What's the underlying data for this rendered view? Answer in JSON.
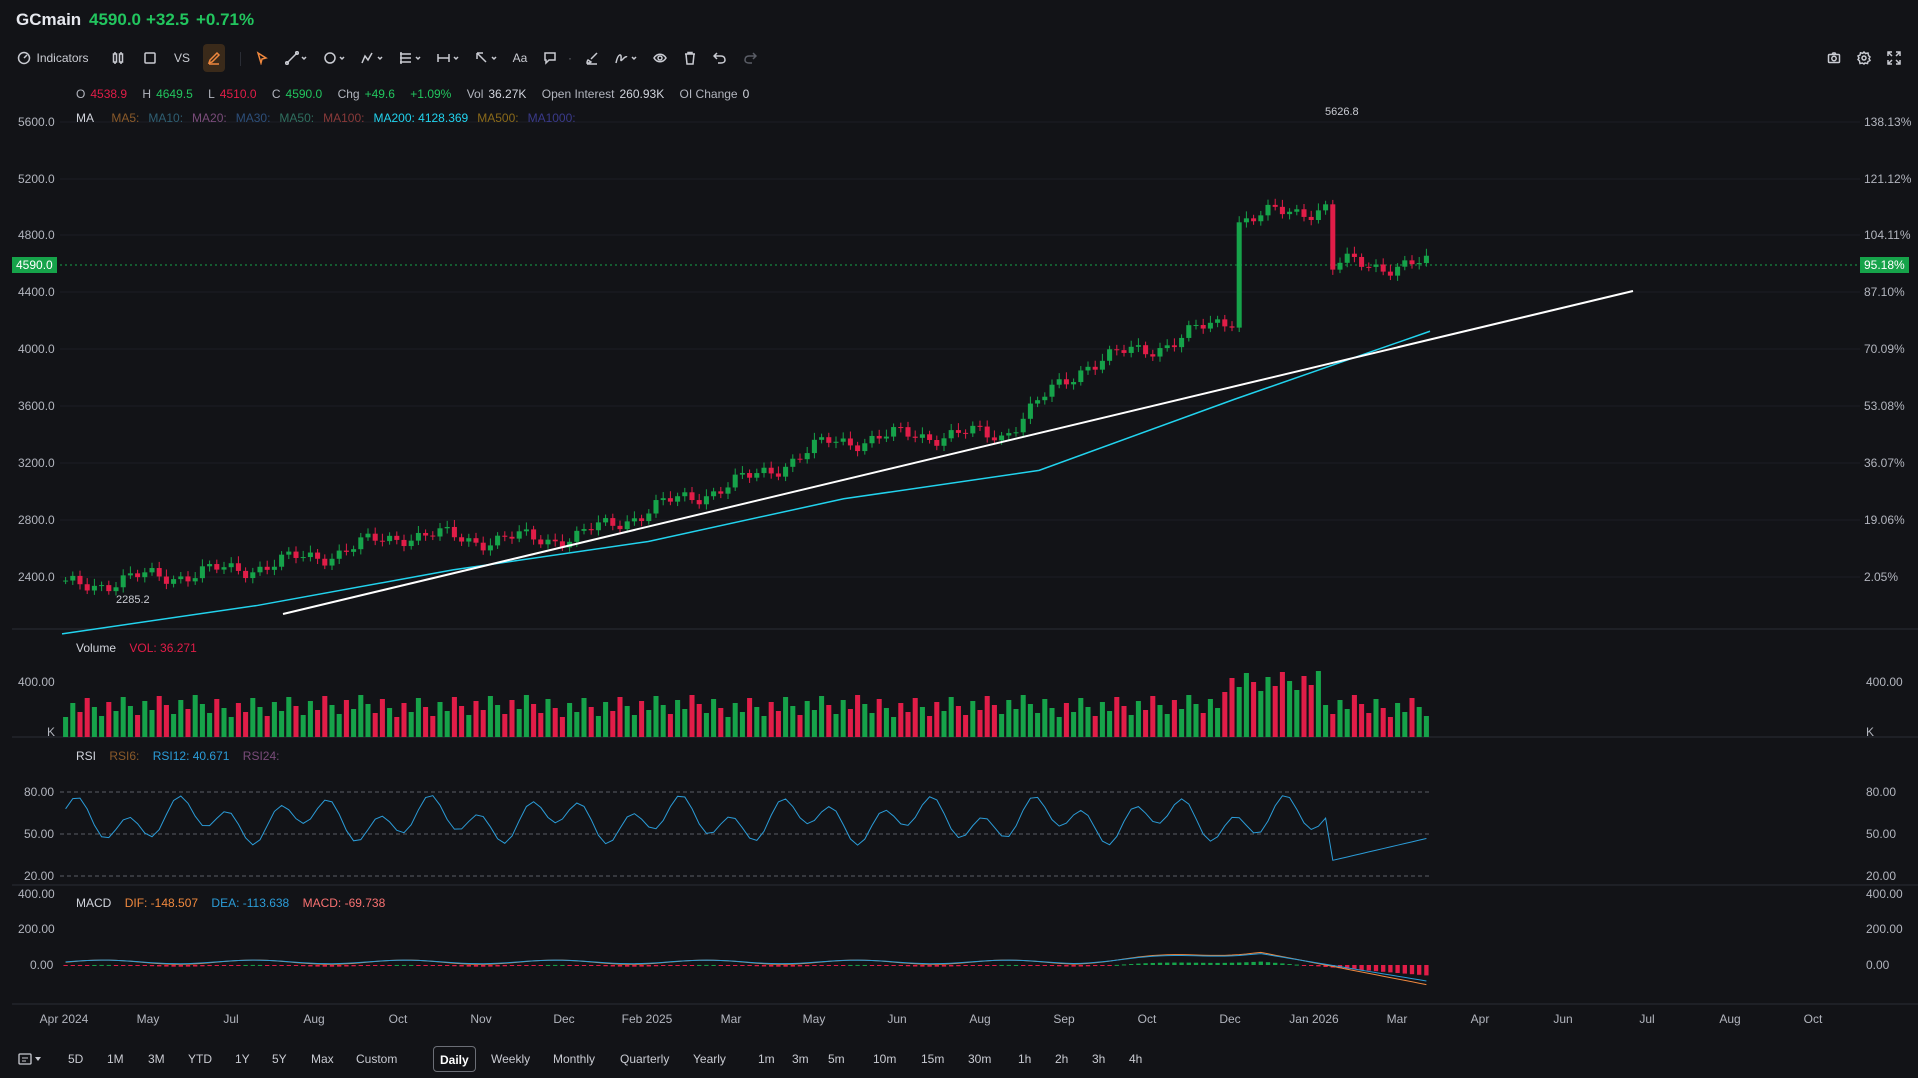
{
  "header": {
    "symbol": "GCmain",
    "last": "4590.0",
    "change": "+32.5",
    "change_pct": "+0.71%"
  },
  "toolbar": {
    "indicators_label": "Indicators",
    "vs_label": "VS",
    "text_tool_label": "Aa"
  },
  "ohlc": {
    "o_label": "O",
    "o": "4538.9",
    "h_label": "H",
    "h": "4649.5",
    "l_label": "L",
    "l": "4510.0",
    "c_label": "C",
    "c": "4590.0",
    "chg_label": "Chg",
    "chg": "+49.6",
    "chg_pct": "+1.09%",
    "vol_label": "Vol",
    "vol": "36.27K",
    "oi_label": "Open Interest",
    "oi": "260.93K",
    "oichg_label": "OI Change",
    "oichg": "0"
  },
  "ma_legend": {
    "title": "MA",
    "items": [
      "MA5:",
      "MA10:",
      "MA20:",
      "MA30:",
      "MA50:",
      "MA100:",
      "MA200: 4128.369",
      "MA500:",
      "MA1000:"
    ],
    "colors": [
      "#8a5a2a",
      "#2f5f73",
      "#7a4c7a",
      "#2d4f7a",
      "#2f6f5f",
      "#8a3a3a",
      "#22d3ee",
      "#8a6a1a",
      "#3a3a8a"
    ]
  },
  "price_axis": {
    "left": [
      "5600.0",
      "5200.0",
      "4800.0",
      "4400.0",
      "4000.0",
      "3600.0",
      "3200.0",
      "2800.0",
      "2400.0"
    ],
    "right": [
      "138.13%",
      "121.12%",
      "104.11%",
      "87.10%",
      "70.09%",
      "53.08%",
      "36.07%",
      "19.06%",
      "2.05%"
    ],
    "current_left": "4590.0",
    "current_right": "95.18%",
    "high_label": "5626.8",
    "low_label": "2285.2"
  },
  "volume": {
    "title": "Volume",
    "value": "VOL: 36.271",
    "axis": "400.00",
    "unit": "K"
  },
  "rsi": {
    "title": "RSI",
    "rsi6": "RSI6:",
    "rsi12": "RSI12: 40.671",
    "rsi24": "RSI24:",
    "levels": [
      "80.00",
      "50.00",
      "20.00"
    ]
  },
  "macd": {
    "title": "MACD",
    "dif": "DIF: -148.507",
    "dea": "DEA: -113.638",
    "macd": "MACD: -69.738",
    "axis": [
      "400.00",
      "200.00",
      "0.00"
    ]
  },
  "time_axis": [
    "Apr 2024",
    "May",
    "Jul",
    "Aug",
    "Oct",
    "Nov",
    "Dec",
    "Feb 2025",
    "Mar",
    "May",
    "Jun",
    "Aug",
    "Sep",
    "Oct",
    "Dec",
    "Jan 2026",
    "Mar",
    "Apr",
    "Jun",
    "Jul",
    "Aug",
    "Oct"
  ],
  "ranges": [
    "5D",
    "1M",
    "3M",
    "YTD",
    "1Y",
    "5Y",
    "Max",
    "Custom"
  ],
  "intervals": [
    "Daily",
    "Weekly",
    "Monthly",
    "Quarterly",
    "Yearly",
    "1m",
    "3m",
    "5m",
    "10m",
    "15m",
    "30m",
    "1h",
    "2h",
    "3h",
    "4h"
  ],
  "active_interval": "Daily",
  "colors": {
    "up": "#16a34a",
    "down": "#e11d48",
    "ma200": "#22d3ee",
    "trendline": "#ffffff",
    "rsi": "#2b9cd8",
    "dif": "#f0883e",
    "dea": "#2b9cd8"
  },
  "chart_data": [
    {
      "type": "line",
      "series": [
        {
          "name": "GCmain",
          "x": [
            "Apr 2024",
            "May",
            "Jul",
            "Aug",
            "Oct",
            "Nov",
            "Dec",
            "Feb 2025",
            "Mar",
            "May",
            "Jun",
            "Aug",
            "Sep",
            "Oct",
            "Dec",
            "Jan 2026",
            "Mar"
          ],
          "values": [
            2330,
            2400,
            2450,
            2550,
            2700,
            2660,
            2680,
            2900,
            3080,
            3350,
            3400,
            3400,
            3900,
            4050,
            4300,
            4600,
            4590
          ]
        },
        {
          "name": "MA200",
          "x": [
            "Apr 2024",
            "Aug",
            "Dec",
            "Mar",
            "Jun",
            "Sep",
            "Dec",
            "Mar"
          ],
          "values": [
            2000,
            2200,
            2450,
            2650,
            2950,
            3150,
            3650,
            4128.369
          ]
        }
      ],
      "ylim": [
        2000,
        5800
      ]
    }
  ]
}
